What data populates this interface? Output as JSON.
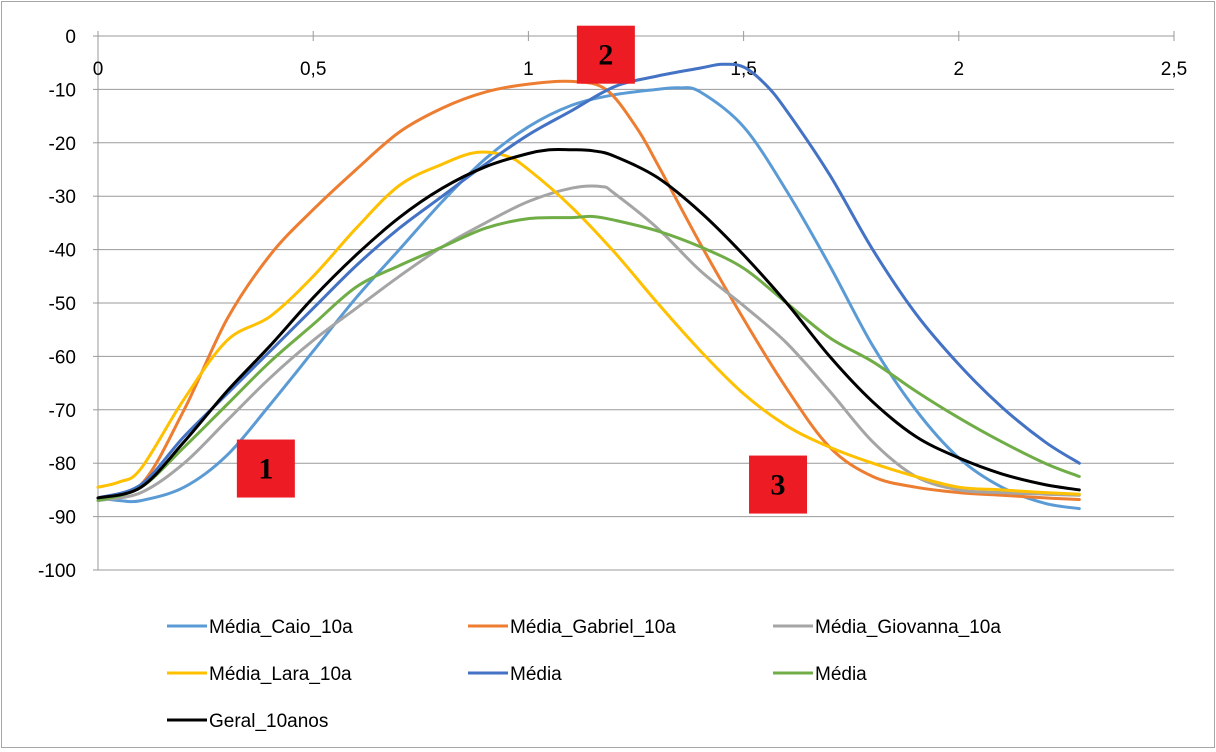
{
  "chart_data": {
    "type": "line",
    "title": "",
    "xlabel": "",
    "ylabel": "",
    "xlim": [
      0,
      2.5
    ],
    "ylim": [
      -100,
      0
    ],
    "x_ticks": [
      0,
      0.5,
      1,
      1.5,
      2,
      2.5
    ],
    "x_tick_labels": [
      "0",
      "0,5",
      "1",
      "1,5",
      "2",
      "2,5"
    ],
    "y_ticks": [
      0,
      -10,
      -20,
      -30,
      -40,
      -50,
      -60,
      -70,
      -80,
      -90,
      -100
    ],
    "y_tick_labels": [
      "0",
      "-10",
      "-20",
      "-30",
      "-40",
      "-50",
      "-60",
      "-70",
      "-80",
      "-90",
      "-100"
    ],
    "grid": "horizontal",
    "legend_position": "bottom",
    "series": [
      {
        "name": "Média_Caio_10a",
        "color": "#5b9bd5",
        "x": [
          0,
          0.05,
          0.1,
          0.2,
          0.3,
          0.4,
          0.5,
          0.6,
          0.7,
          0.8,
          0.9,
          1.0,
          1.1,
          1.2,
          1.3,
          1.35,
          1.4,
          1.5,
          1.6,
          1.7,
          1.8,
          1.9,
          2.0,
          2.1,
          2.2,
          2.28
        ],
        "y": [
          -86.5,
          -87,
          -87,
          -84.5,
          -78.5,
          -69,
          -59,
          -49,
          -40,
          -31,
          -23,
          -17,
          -13,
          -11,
          -10,
          -9.7,
          -10.5,
          -17,
          -29,
          -43,
          -58,
          -70,
          -79,
          -84.5,
          -87.5,
          -88.5
        ]
      },
      {
        "name": "Média_Gabriel_10a",
        "color": "#ed7d31",
        "x": [
          0,
          0.1,
          0.2,
          0.3,
          0.4,
          0.5,
          0.6,
          0.7,
          0.8,
          0.9,
          1.0,
          1.1,
          1.18,
          1.25,
          1.3,
          1.4,
          1.5,
          1.6,
          1.7,
          1.8,
          1.9,
          2.0,
          2.1,
          2.2,
          2.28
        ],
        "y": [
          -86.5,
          -84,
          -70,
          -53,
          -41,
          -32.5,
          -25,
          -18,
          -13.5,
          -10.5,
          -9,
          -8.5,
          -10,
          -17,
          -24,
          -39,
          -53,
          -66,
          -77,
          -82.5,
          -84.5,
          -85.5,
          -86,
          -86.5,
          -86.8
        ]
      },
      {
        "name": "Média_Giovanna_10a",
        "color": "#a5a5a5",
        "x": [
          0,
          0.1,
          0.2,
          0.3,
          0.4,
          0.5,
          0.6,
          0.7,
          0.8,
          0.9,
          1.0,
          1.1,
          1.17,
          1.2,
          1.3,
          1.4,
          1.5,
          1.6,
          1.7,
          1.8,
          1.9,
          2.0,
          2.1,
          2.2,
          2.28
        ],
        "y": [
          -87,
          -85.5,
          -80,
          -72,
          -64,
          -57,
          -51,
          -45,
          -39.5,
          -35,
          -31,
          -28.5,
          -28.2,
          -29.5,
          -36,
          -44,
          -50.5,
          -57.5,
          -66.5,
          -76,
          -82.5,
          -85,
          -85.5,
          -85.8,
          -86
        ]
      },
      {
        "name": "Média_Lara_10a",
        "color": "#ffc000",
        "x": [
          0,
          0.05,
          0.1,
          0.2,
          0.3,
          0.4,
          0.5,
          0.6,
          0.7,
          0.8,
          0.88,
          0.95,
          1.0,
          1.1,
          1.2,
          1.3,
          1.4,
          1.5,
          1.6,
          1.7,
          1.8,
          1.9,
          2.0,
          2.1,
          2.2,
          2.28
        ],
        "y": [
          -84.5,
          -83.5,
          -81,
          -68,
          -57,
          -52.5,
          -45,
          -36,
          -28,
          -24,
          -21.8,
          -22.5,
          -25,
          -32,
          -40.5,
          -50,
          -59,
          -67,
          -73,
          -77,
          -80,
          -82.5,
          -84.5,
          -85,
          -85.5,
          -85.8
        ]
      },
      {
        "name": "Média",
        "color": "#4472c4",
        "x": [
          0,
          0.1,
          0.2,
          0.3,
          0.4,
          0.5,
          0.6,
          0.7,
          0.8,
          0.9,
          1.0,
          1.1,
          1.2,
          1.3,
          1.4,
          1.45,
          1.5,
          1.55,
          1.6,
          1.7,
          1.8,
          1.9,
          2.0,
          2.1,
          2.2,
          2.28
        ],
        "y": [
          -86.5,
          -84,
          -75,
          -67,
          -59,
          -51,
          -43,
          -36,
          -30,
          -24,
          -18.5,
          -14,
          -9.5,
          -7.5,
          -6,
          -5.3,
          -5.8,
          -9,
          -14,
          -26,
          -40,
          -52,
          -61.5,
          -69.5,
          -76,
          -80
        ]
      },
      {
        "name": "Média",
        "color": "#70ad47",
        "x": [
          0,
          0.1,
          0.2,
          0.3,
          0.4,
          0.5,
          0.6,
          0.7,
          0.8,
          0.9,
          1.0,
          1.1,
          1.15,
          1.2,
          1.3,
          1.4,
          1.5,
          1.6,
          1.7,
          1.8,
          1.9,
          2.0,
          2.1,
          2.2,
          2.28
        ],
        "y": [
          -87,
          -84.5,
          -77,
          -69,
          -61,
          -54,
          -47,
          -43,
          -39.5,
          -36,
          -34.2,
          -34,
          -33.8,
          -34.5,
          -36.5,
          -39.5,
          -43.5,
          -50,
          -56.5,
          -61,
          -66.5,
          -71.5,
          -76,
          -80,
          -82.5
        ]
      },
      {
        "name": "Geral_10anos",
        "color": "#000000",
        "x": [
          0,
          0.1,
          0.2,
          0.3,
          0.4,
          0.5,
          0.6,
          0.7,
          0.8,
          0.9,
          1.0,
          1.05,
          1.1,
          1.15,
          1.2,
          1.3,
          1.4,
          1.5,
          1.6,
          1.7,
          1.8,
          1.9,
          2.0,
          2.1,
          2.2,
          2.28
        ],
        "y": [
          -86.5,
          -84.5,
          -76,
          -66.5,
          -58,
          -49,
          -41,
          -34,
          -28.5,
          -24.5,
          -22,
          -21.3,
          -21.3,
          -21.5,
          -22.5,
          -26.5,
          -33,
          -41,
          -50,
          -60,
          -68.5,
          -75,
          -79,
          -82,
          -84,
          -85
        ]
      }
    ],
    "annotations": [
      {
        "label": "1",
        "x": 0.39,
        "y": -81,
        "fill": "#ed1c24"
      },
      {
        "label": "2",
        "x": 1.18,
        "y": -3.5,
        "fill": "#ed1c24"
      },
      {
        "label": "3",
        "x": 1.58,
        "y": -84,
        "fill": "#ed1c24"
      }
    ]
  }
}
